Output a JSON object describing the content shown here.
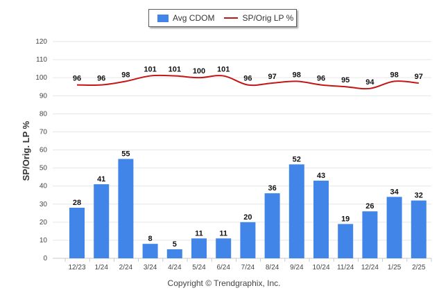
{
  "legend": {
    "bar_label": "Avg CDOM",
    "line_label": "SP/Orig LP %"
  },
  "copyright": "Copyright © Trendgraphix, Inc.",
  "colors": {
    "bar": "#4285e9",
    "line": "#c41414",
    "grid": "#e6e6e6"
  },
  "chart_data": {
    "type": "bar",
    "title": "",
    "xlabel": "",
    "ylabel": "SP/Orig. LP %",
    "ylim": [
      0,
      120
    ],
    "yticks": [
      0,
      10,
      20,
      30,
      40,
      50,
      60,
      70,
      80,
      90,
      100,
      110,
      120
    ],
    "grid": true,
    "legend_position": "top-center",
    "categories": [
      "12/23",
      "1/24",
      "2/24",
      "3/24",
      "4/24",
      "5/24",
      "6/24",
      "7/24",
      "8/24",
      "9/24",
      "10/24",
      "11/24",
      "12/24",
      "1/25",
      "2/25"
    ],
    "series": [
      {
        "name": "Avg CDOM",
        "type": "bar",
        "values": [
          28,
          41,
          55,
          8,
          5,
          11,
          11,
          20,
          36,
          52,
          43,
          19,
          26,
          34,
          32
        ]
      },
      {
        "name": "SP/Orig LP %",
        "type": "line",
        "values": [
          96,
          96,
          98,
          101,
          101,
          100,
          101,
          96,
          97,
          98,
          96,
          95,
          94,
          98,
          97
        ]
      }
    ]
  }
}
